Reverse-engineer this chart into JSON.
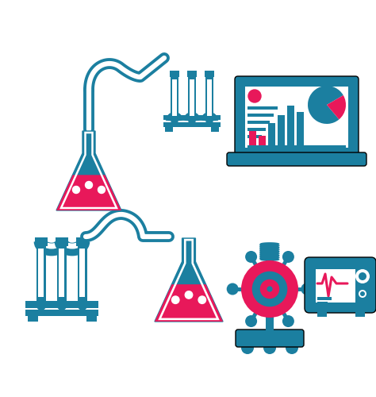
{
  "bg_color": "#ffffff",
  "teal": "#1b7fa0",
  "pink": "#e8185a",
  "white": "#ffffff",
  "fig_width": 4.74,
  "fig_height": 5.0,
  "dpi": 100
}
